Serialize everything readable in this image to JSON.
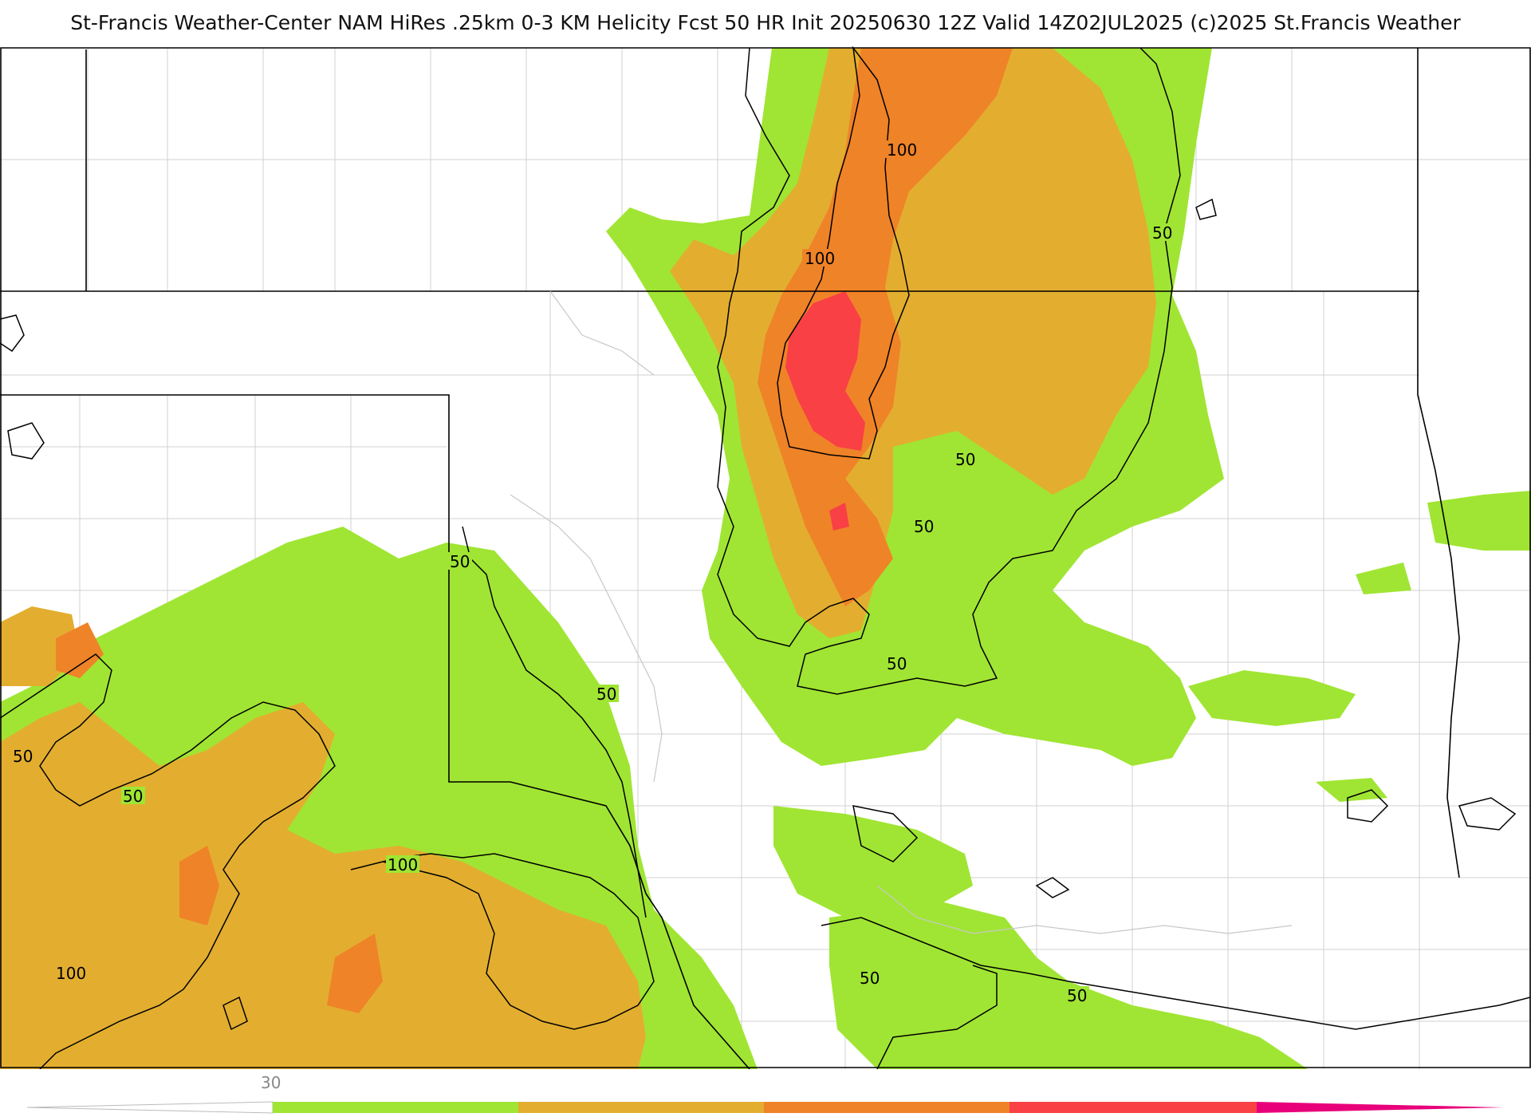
{
  "title": "St-Francis Weather-Center NAM HiRes .25km 0-3 KM Helicity Fcst 50 HR Init 20250630 12Z  Valid 14Z02JUL2025     (c)2025 St.Francis Weather",
  "map": {
    "contour_labels": [
      {
        "text": "100",
        "id": "contour-label-100-north"
      },
      {
        "text": "100",
        "id": "contour-label-100-mid"
      },
      {
        "text": "50",
        "id": "contour-label-50-ne"
      },
      {
        "text": "50",
        "id": "contour-label-50-center-a"
      },
      {
        "text": "50",
        "id": "contour-label-50-center-b"
      },
      {
        "text": "50",
        "id": "contour-label-50-center-c"
      },
      {
        "text": "50",
        "id": "contour-label-50-west-a"
      },
      {
        "text": "50",
        "id": "contour-label-50-west-b"
      },
      {
        "text": "50",
        "id": "contour-label-50-west-c"
      },
      {
        "text": "50",
        "id": "contour-label-50-west-d"
      },
      {
        "text": "100",
        "id": "contour-label-100-sw-a"
      },
      {
        "text": "100",
        "id": "contour-label-100-sw-b"
      },
      {
        "text": "50",
        "id": "contour-label-50-south-a"
      },
      {
        "text": "50",
        "id": "contour-label-50-south-b"
      }
    ],
    "colors": {
      "green": "#a0e533",
      "gold": "#e3ae2f",
      "orange": "#ef8328",
      "red": "#f84045",
      "magenta": "#e8007a",
      "border": "#000000",
      "county": "#cfcfcf"
    }
  },
  "colorbar": {
    "tick_label": "30",
    "segments": [
      "#a0e533",
      "#e3ae2f",
      "#ef8328",
      "#f84045",
      "#e8007a"
    ]
  }
}
